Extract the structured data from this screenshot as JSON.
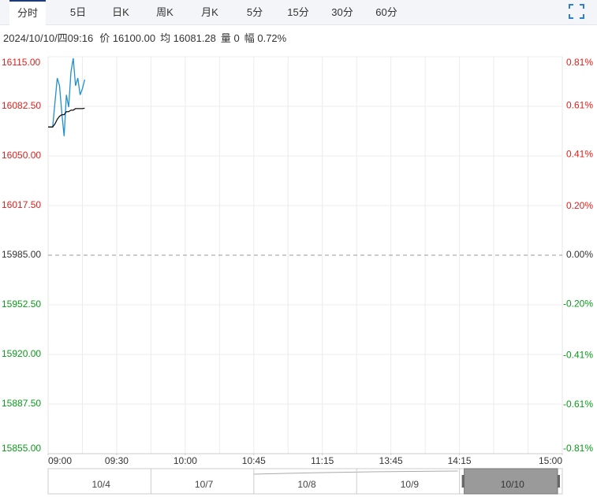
{
  "tabs": [
    "分时",
    "5日",
    "日K",
    "周K",
    "月K",
    "5分",
    "15分",
    "30分",
    "60分"
  ],
  "info": {
    "datetime": "2024/10/10/四09:16",
    "price": "价 16100.00",
    "avg": "均 16081.28",
    "volume": "量 0",
    "change": "幅 0.72%"
  },
  "navigator": [
    "10/4",
    "10/7",
    "10/8",
    "10/9",
    "10/10"
  ],
  "chart_data": {
    "type": "line",
    "x": [
      0,
      1,
      2,
      3,
      4,
      5,
      6,
      7,
      8,
      9,
      10,
      11,
      12,
      13,
      14,
      15,
      16
    ],
    "xlim": [
      0,
      225
    ],
    "xticks": [
      {
        "value": 0,
        "label": "09:00"
      },
      {
        "value": 30,
        "label": "09:30"
      },
      {
        "value": 60,
        "label": "10:00"
      },
      {
        "value": 90,
        "label": "10:45"
      },
      {
        "value": 120,
        "label": "11:15"
      },
      {
        "value": 150,
        "label": "13:45"
      },
      {
        "value": 180,
        "label": "14:15"
      },
      {
        "value": 225,
        "label": "15:00"
      }
    ],
    "ylim": [
      15855,
      16115
    ],
    "yticks": [
      {
        "value": 16115,
        "label": "16115.00"
      },
      {
        "value": 16082.5,
        "label": "16082.50"
      },
      {
        "value": 16050,
        "label": "16050.00"
      },
      {
        "value": 16017.5,
        "label": "16017.50"
      },
      {
        "value": 15985,
        "label": "15985.00"
      },
      {
        "value": 15952.5,
        "label": "15952.50"
      },
      {
        "value": 15920,
        "label": "15920.00"
      },
      {
        "value": 15887.5,
        "label": "15887.50"
      },
      {
        "value": 15855,
        "label": "15855.00"
      }
    ],
    "y2lim": [
      -0.81,
      0.81
    ],
    "y2ticks": [
      {
        "value": 0.81,
        "label": "0.81%"
      },
      {
        "value": 0.61,
        "label": "0.61%"
      },
      {
        "value": 0.41,
        "label": "0.41%"
      },
      {
        "value": 0.2,
        "label": "0.20%"
      },
      {
        "value": 0,
        "label": "0.00%"
      },
      {
        "value": -0.2,
        "label": "-0.20%"
      },
      {
        "value": -0.41,
        "label": "-0.41%"
      },
      {
        "value": -0.61,
        "label": "-0.61%"
      },
      {
        "value": -0.81,
        "label": "-0.81%"
      }
    ],
    "prev_close": 15985,
    "grid": true,
    "up_color": "#e0201b",
    "down_color": "#0a9a1a",
    "series": [
      {
        "color": "#1f8fd0",
        "values": [
          16069,
          16069,
          16069,
          16085,
          16101,
          16096,
          16078,
          16063,
          16090,
          16082,
          16105,
          16114,
          16096,
          16101,
          16090,
          16094,
          16100
        ]
      },
      {
        "color": "#111111",
        "values": [
          16069,
          16069,
          16069,
          16071,
          16074,
          16076,
          16077,
          16077,
          16079,
          16079,
          16080,
          16080,
          16081,
          16081,
          16081,
          16081,
          16081.28
        ]
      }
    ]
  }
}
